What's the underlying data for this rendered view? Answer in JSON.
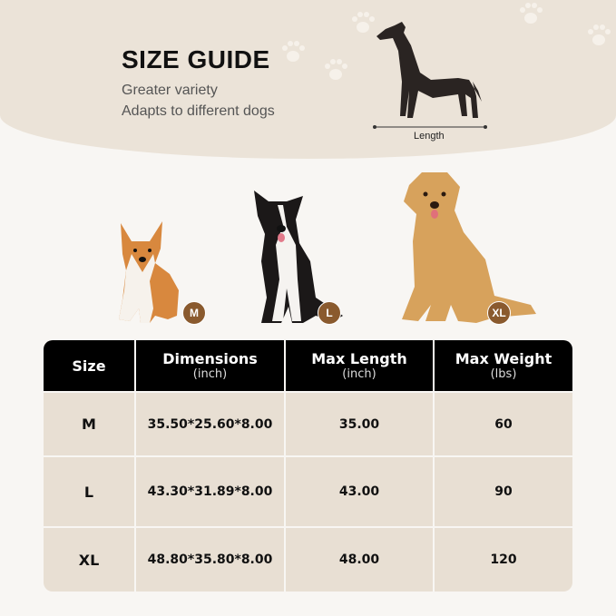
{
  "header": {
    "title": "SIZE GUIDE",
    "subtitle_1": "Greater variety",
    "subtitle_2": "Adapts to different dogs",
    "length_label": "Length"
  },
  "dogs": [
    {
      "badge": "M"
    },
    {
      "badge": "L"
    },
    {
      "badge": "XL"
    }
  ],
  "colors": {
    "banner": "#ebe3d8",
    "badge": "#8a5a2e",
    "table_header": "#000000",
    "table_row": "#e8dfd3"
  },
  "table": {
    "headers": [
      {
        "label": "Size",
        "unit": ""
      },
      {
        "label": "Dimensions",
        "unit": "(inch)"
      },
      {
        "label": "Max Length",
        "unit": "(inch)"
      },
      {
        "label": "Max Weight",
        "unit": "(lbs)"
      }
    ],
    "rows": [
      [
        "M",
        "35.50*25.60*8.00",
        "35.00",
        "60"
      ],
      [
        "L",
        "43.30*31.89*8.00",
        "43.00",
        "90"
      ],
      [
        "XL",
        "48.80*35.80*8.00",
        "48.00",
        "120"
      ]
    ]
  }
}
